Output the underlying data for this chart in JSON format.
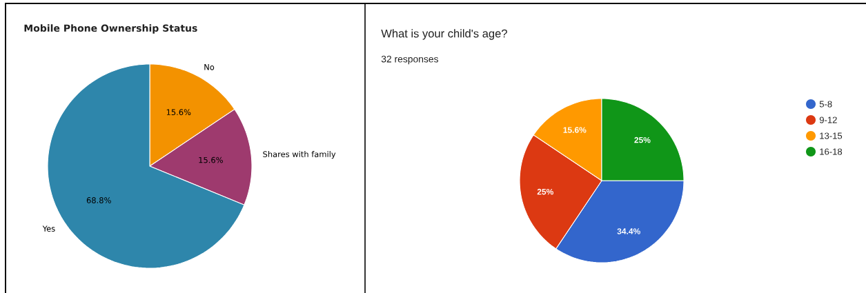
{
  "chart_data": [
    {
      "type": "pie",
      "title": "Mobile Phone Ownership Status",
      "categories": [
        "No",
        "Shares with family",
        "Yes"
      ],
      "values": [
        15.6,
        15.6,
        68.8
      ],
      "colors": [
        "#f39200",
        "#9e3a6e",
        "#2e86ab"
      ],
      "value_labels": [
        "15.6%",
        "15.6%",
        "68.8%"
      ]
    },
    {
      "type": "pie",
      "title": "What is your child's age?",
      "subtitle": "32 responses",
      "categories": [
        "5-8",
        "9-12",
        "13-15",
        "16-18"
      ],
      "values": [
        34.4,
        25,
        15.6,
        25
      ],
      "colors": [
        "#3366cc",
        "#dc3912",
        "#ff9900",
        "#109618"
      ],
      "value_labels": [
        "34.4%",
        "25%",
        "15.6%",
        "25%"
      ],
      "legend": "right"
    }
  ]
}
